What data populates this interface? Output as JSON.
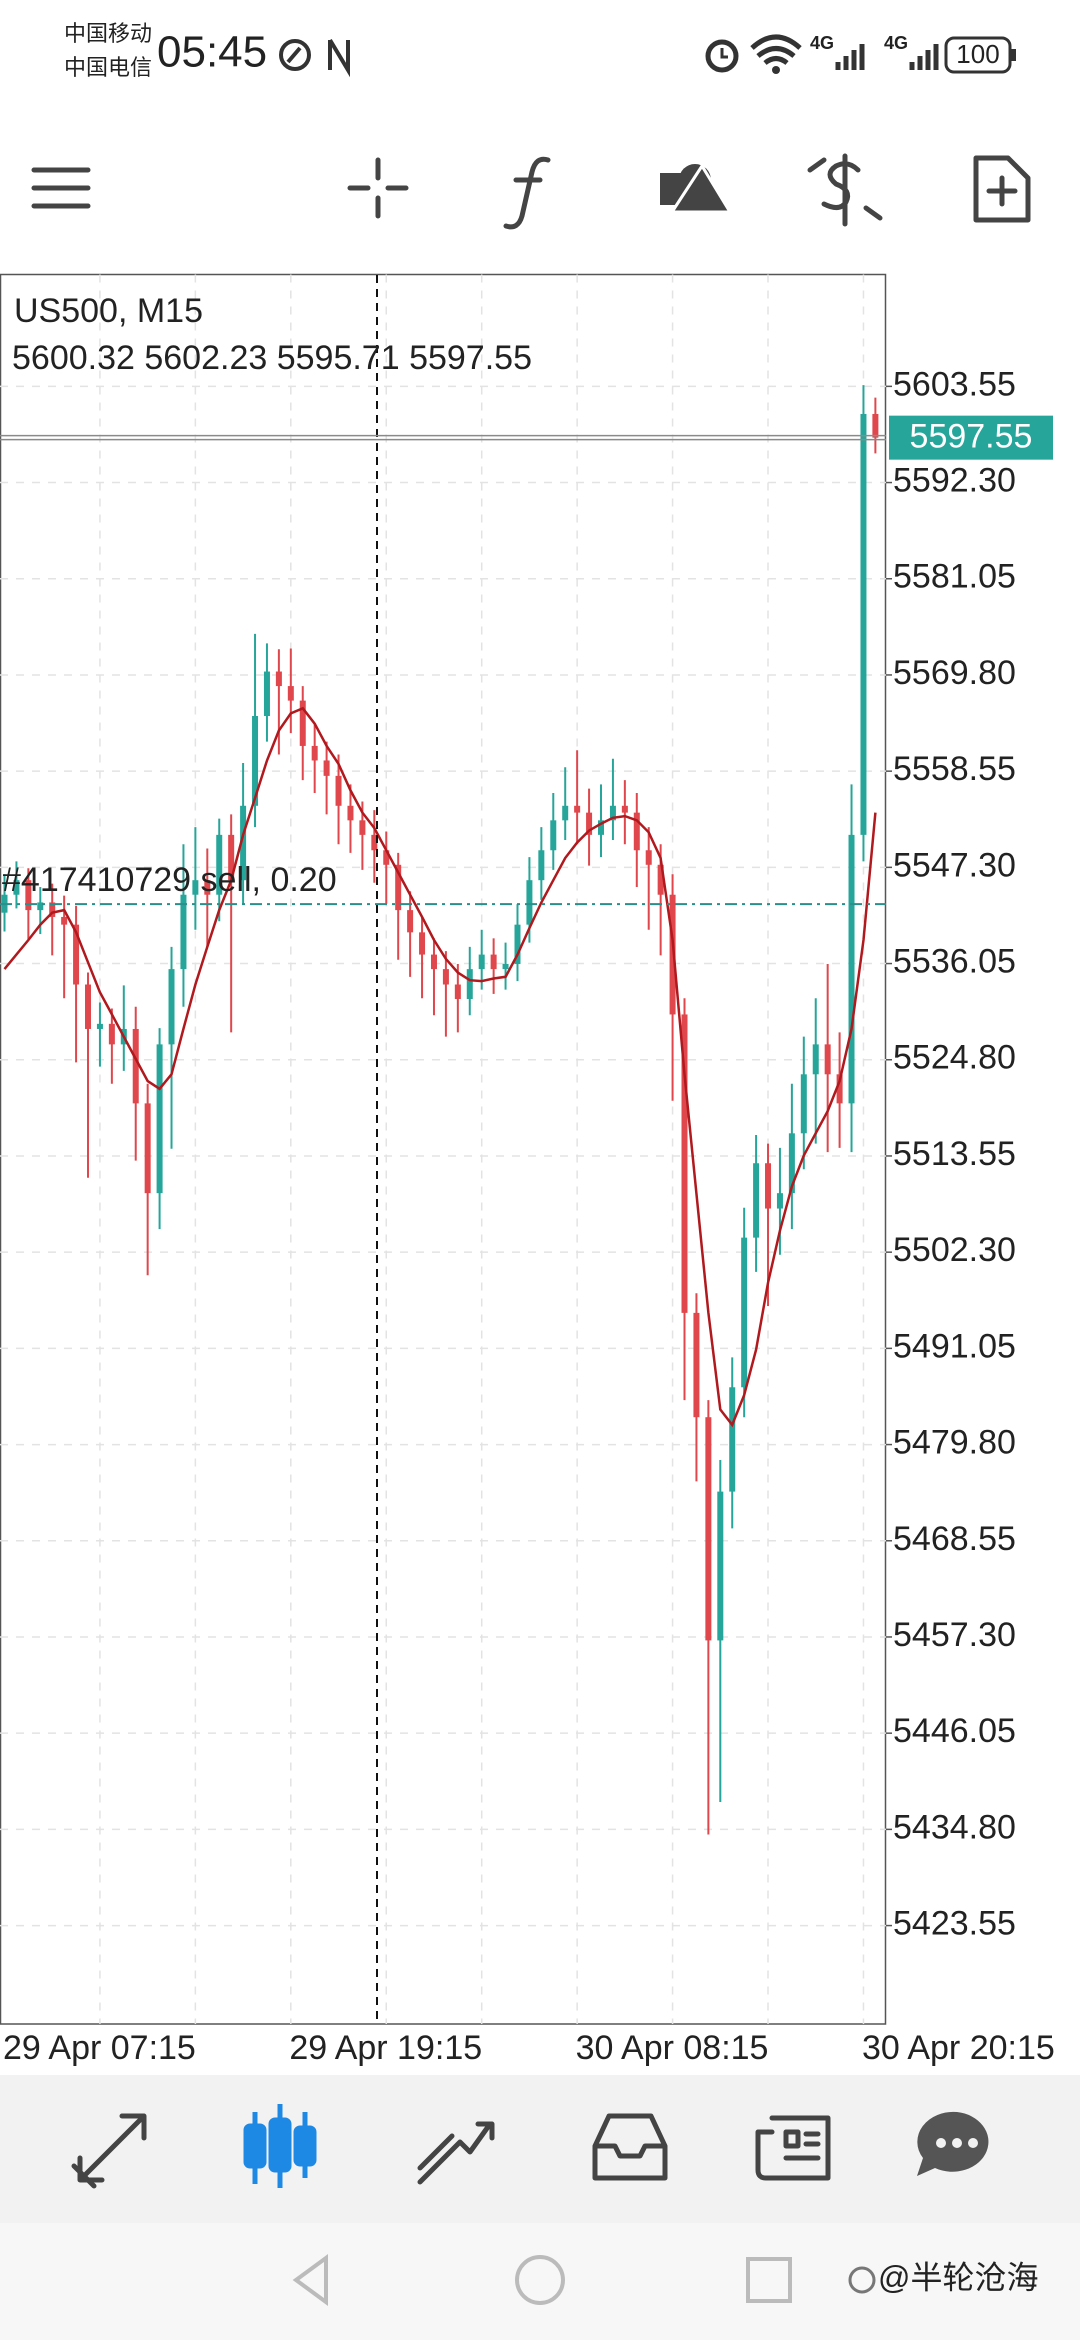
{
  "status_bar": {
    "carrier_1": "中国移动",
    "carrier_2": "中国电信",
    "time": "05:45",
    "network_1": "4G",
    "network_2": "4G",
    "battery": "100"
  },
  "chart_data": {
    "type": "candlestick",
    "symbol": "US500, M15",
    "categories": [
      "29 Apr 07:15",
      null,
      null,
      null,
      null,
      null,
      null,
      null,
      null,
      null,
      null,
      null,
      null,
      null,
      null,
      null,
      null,
      null,
      null,
      null,
      null,
      null,
      null,
      null,
      "29 Apr 19:15",
      null,
      null,
      null,
      null,
      null,
      null,
      null,
      null,
      null,
      null,
      null,
      null,
      null,
      null,
      null,
      null,
      null,
      null,
      null,
      null,
      null,
      null,
      null,
      "30 Apr 08:15",
      null,
      null,
      null,
      null,
      null,
      null,
      null,
      null,
      null,
      null,
      null,
      null,
      null,
      null,
      null,
      null,
      null,
      null,
      null,
      null,
      null,
      null,
      null,
      "30 Apr 20:15",
      null
    ],
    "open": [
      5542.0,
      5544.1,
      5545.8,
      5542.3,
      5543.2,
      5541.5,
      5540.6,
      5533.6,
      5528.4,
      5529.0,
      5526.6,
      5528.4,
      5519.7,
      5509.2,
      5526.6,
      5535.4,
      5544.1,
      5545.8,
      5544.1,
      5551.1,
      5545.8,
      5554.5,
      5565.0,
      5570.2,
      5568.5,
      5566.8,
      5561.5,
      5559.8,
      5558.0,
      5554.5,
      5552.8,
      5551.1,
      5549.3,
      5547.6,
      5542.3,
      5539.7,
      5537.1,
      5535.4,
      5533.6,
      5531.9,
      5535.4,
      5537.1,
      5535.4,
      5536.0,
      5540.6,
      5545.8,
      5549.3,
      5552.8,
      5554.5,
      5553.7,
      5551.1,
      5552.8,
      5554.5,
      5553.7,
      5549.3,
      5547.6,
      5544.1,
      5530.1,
      5495.2,
      5483.0,
      5456.9,
      5474.3,
      5486.5,
      5504.0,
      5512.7,
      5507.4,
      5509.2,
      5516.2,
      5523.1,
      5526.6,
      5523.1,
      5519.7,
      5551.1,
      5600.32
    ],
    "high": [
      5546.5,
      5548.0,
      5547.2,
      5545.0,
      5545.4,
      5544.0,
      5542.8,
      5535.0,
      5531.5,
      5530.8,
      5533.5,
      5531.0,
      5522.0,
      5528.5,
      5538.0,
      5550.0,
      5552.0,
      5549.5,
      5553.0,
      5553.5,
      5559.5,
      5574.6,
      5573.5,
      5572.8,
      5572.9,
      5568.5,
      5564.0,
      5562.0,
      5560.5,
      5557.0,
      5555.0,
      5554.0,
      5551.5,
      5549.0,
      5544.5,
      5541.5,
      5539.0,
      5537.5,
      5536.0,
      5538.0,
      5540.0,
      5539.0,
      5538.5,
      5543.0,
      5548.5,
      5552.0,
      5556.0,
      5559.0,
      5561.0,
      5556.5,
      5557.0,
      5560.0,
      5557.5,
      5556.0,
      5552.0,
      5550.0,
      5546.5,
      5532.0,
      5497.5,
      5485.0,
      5478.0,
      5490.0,
      5507.5,
      5516.0,
      5515.0,
      5514.5,
      5522.0,
      5527.5,
      5532.0,
      5536.0,
      5528.0,
      5557.0,
      5603.7,
      5602.23
    ],
    "low": [
      5539.8,
      5542.5,
      5538.9,
      5539.5,
      5537.0,
      5532.0,
      5524.5,
      5511.0,
      5524.0,
      5522.0,
      5523.5,
      5513.0,
      5499.6,
      5505.0,
      5514.4,
      5531.0,
      5540.0,
      5538.0,
      5541.0,
      5528.0,
      5543.0,
      5552.0,
      5562.0,
      5560.5,
      5563.0,
      5557.5,
      5556.0,
      5553.5,
      5550.0,
      5549.0,
      5547.0,
      5545.5,
      5543.0,
      5536.5,
      5534.5,
      5532.0,
      5530.0,
      5527.5,
      5528.0,
      5530.0,
      5533.0,
      5532.5,
      5533.0,
      5534.0,
      5538.5,
      5543.5,
      5547.0,
      5550.5,
      5550.0,
      5547.5,
      5548.5,
      5550.5,
      5550.0,
      5545.0,
      5540.0,
      5537.0,
      5520.0,
      5485.0,
      5475.5,
      5434.2,
      5438.0,
      5470.0,
      5483.0,
      5500.0,
      5496.0,
      5502.0,
      5505.0,
      5512.0,
      5515.0,
      5514.0,
      5514.5,
      5514.0,
      5548.0,
      5595.71
    ],
    "close": [
      5544.1,
      5545.8,
      5542.3,
      5543.2,
      5541.5,
      5540.6,
      5533.6,
      5528.4,
      5529.0,
      5526.6,
      5528.4,
      5519.7,
      5509.2,
      5526.6,
      5535.4,
      5544.1,
      5545.8,
      5544.1,
      5551.1,
      5545.8,
      5554.5,
      5565.0,
      5570.2,
      5568.5,
      5566.8,
      5561.5,
      5559.8,
      5558.0,
      5554.5,
      5552.8,
      5551.1,
      5549.3,
      5547.6,
      5542.3,
      5539.7,
      5537.1,
      5535.4,
      5533.6,
      5531.9,
      5535.4,
      5537.1,
      5535.4,
      5536.0,
      5540.6,
      5545.8,
      5549.3,
      5552.8,
      5554.5,
      5553.7,
      5551.1,
      5552.8,
      5554.5,
      5553.7,
      5549.3,
      5547.6,
      5544.1,
      5530.1,
      5495.2,
      5483.0,
      5456.9,
      5474.3,
      5486.5,
      5504.0,
      5512.7,
      5507.4,
      5509.2,
      5516.2,
      5523.1,
      5526.6,
      5523.1,
      5519.7,
      5551.1,
      5600.32,
      5597.55
    ],
    "ma_values": [
      5535.4,
      5537.1,
      5538.8,
      5540.6,
      5542.0,
      5542.3,
      5539.7,
      5536.2,
      5532.7,
      5530.1,
      5527.5,
      5524.9,
      5522.3,
      5521.4,
      5523.1,
      5528.4,
      5533.6,
      5538.0,
      5542.3,
      5545.8,
      5551.1,
      5555.4,
      5559.8,
      5563.3,
      5565.3,
      5565.9,
      5564.1,
      5561.5,
      5559.4,
      5556.3,
      5553.7,
      5551.9,
      5549.3,
      5546.7,
      5544.1,
      5541.5,
      5538.8,
      5536.6,
      5535.0,
      5534.1,
      5534.0,
      5534.3,
      5534.5,
      5537.1,
      5540.2,
      5543.2,
      5545.8,
      5548.4,
      5550.2,
      5551.6,
      5552.4,
      5553.1,
      5553.3,
      5552.8,
      5551.4,
      5548.4,
      5538.8,
      5523.1,
      5509.2,
      5495.2,
      5483.9,
      5482.1,
      5485.6,
      5490.9,
      5498.7,
      5504.8,
      5510.0,
      5513.6,
      5516.2,
      5518.8,
      5522.3,
      5528.4,
      5538.8,
      5553.7
    ],
    "ma_color": "#b0191e",
    "up_color": "#26a69a",
    "down_color": "#e0474c",
    "price_color": "#26a69a",
    "order_line": {
      "label": "#417410729 sell, 0.20",
      "value": 5543.0,
      "color": "#2a8f8a"
    },
    "ylim": [
      5412.04,
      5616.63
    ],
    "yticks": [
      5423.55,
      {
        "value": 5434.8,
        "label": "5434.80"
      },
      5446.05,
      {
        "value": 5457.3,
        "label": "5457.30"
      },
      5468.55,
      {
        "value": 5479.8,
        "label": "5479.80"
      },
      5491.05,
      {
        "value": 5502.3,
        "label": "5502.30"
      },
      5513.55,
      {
        "value": 5524.8,
        "label": "5524.80"
      },
      5536.05,
      {
        "value": 5547.3,
        "label": "5547.30"
      },
      5558.55,
      {
        "value": 5569.8,
        "label": "5569.80"
      },
      5581.05,
      {
        "value": 5592.3,
        "label": "5592.30"
      },
      5603.55
    ],
    "grid": true
  },
  "watermark": "@半轮沧海"
}
